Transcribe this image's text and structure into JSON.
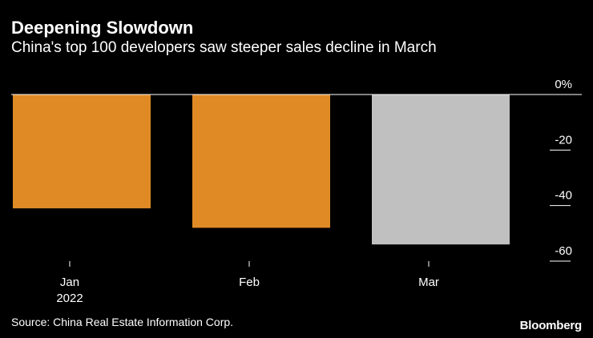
{
  "title": "Deepening Slowdown",
  "subtitle": "China's top 100 developers saw steeper sales decline in March",
  "source": "Source: China Real Estate Information Corp.",
  "brand": "Bloomberg",
  "colors": {
    "background": "#000000",
    "text": "#ffffff",
    "highlight_bar": "#E08A26",
    "latest_bar": "#C0C0C0",
    "axis": "#ffffff"
  },
  "chart_data": {
    "type": "bar",
    "title": "Deepening Slowdown",
    "subtitle": "China's top 100 developers saw steeper sales decline in March",
    "categories": [
      "Jan",
      "Feb",
      "Mar"
    ],
    "category_sublabels": [
      "2022",
      "",
      ""
    ],
    "values": [
      -41,
      -48,
      -54
    ],
    "value_unit": "%",
    "bar_colors": [
      "#E08A26",
      "#E08A26",
      "#C0C0C0"
    ],
    "ylim": [
      -60,
      0
    ],
    "yticks": [
      0,
      -20,
      -40,
      -60
    ],
    "ytick_labels": [
      "0%",
      "-20",
      "-40",
      "-60"
    ],
    "y_axis_side": "right",
    "xlabel": "",
    "ylabel": "",
    "grid": false
  }
}
